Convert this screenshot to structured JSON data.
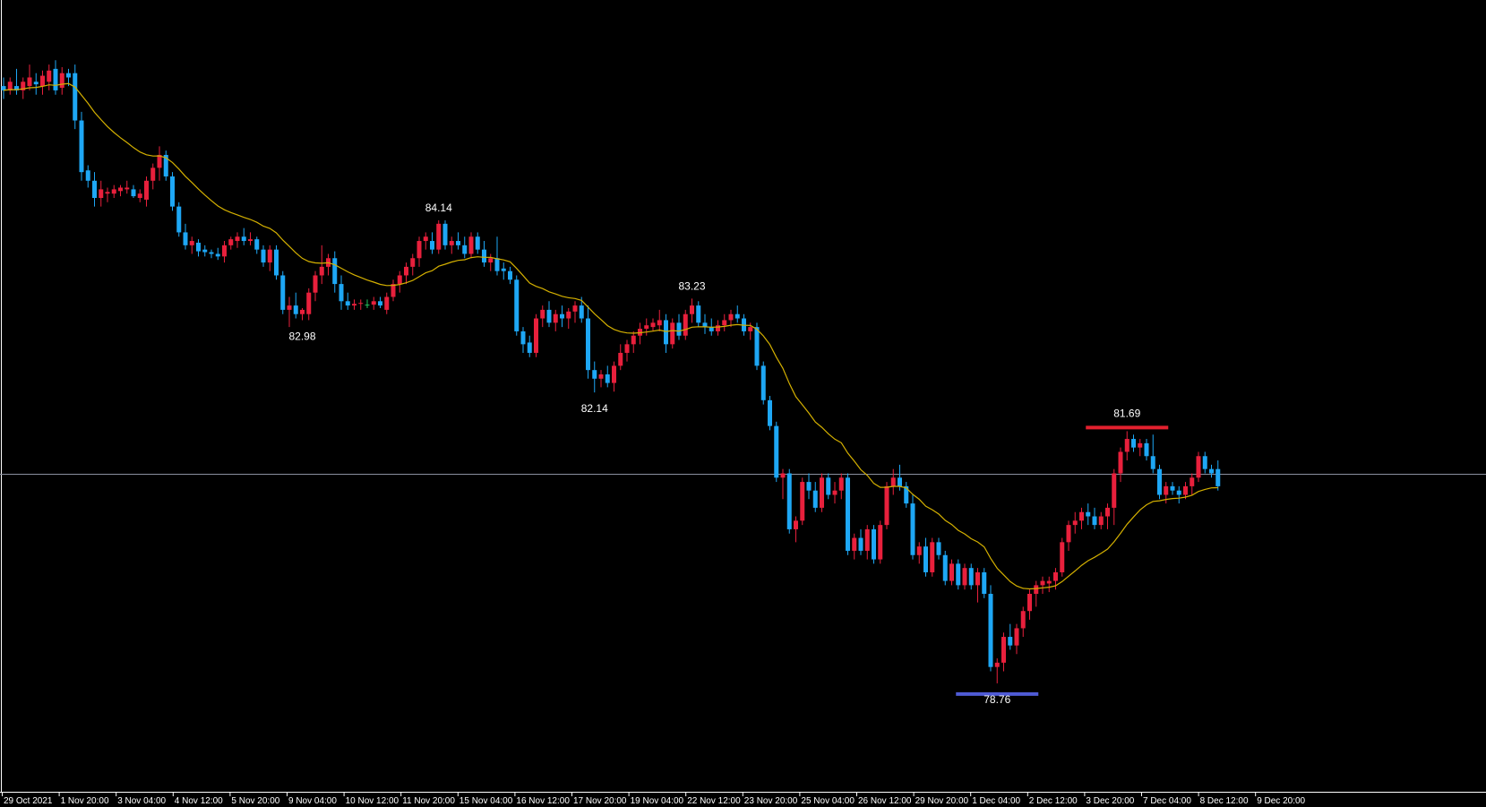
{
  "chart_data": {
    "type": "candlestick",
    "colors": {
      "background": "#000000",
      "bull": "#e8203c",
      "bear": "#1ea7f5",
      "doji": "#22c55e",
      "moving_average": "#d4b000",
      "crosshair": "#8a8f9e",
      "support_line": "#4f5bd5",
      "resistance_line": "#e3202e",
      "axis": "#ffffff"
    },
    "y_range": [
      77.5,
      86.7
    ],
    "current_level": 81.19,
    "x_tick_labels": [
      "29 Oct 2021",
      "1 Nov 20:00",
      "3 Nov 04:00",
      "4 Nov 12:00",
      "5 Nov 20:00",
      "9 Nov 04:00",
      "10 Nov 12:00",
      "11 Nov 20:00",
      "15 Nov 04:00",
      "16 Nov 12:00",
      "17 Nov 20:00",
      "19 Nov 04:00",
      "22 Nov 12:00",
      "23 Nov 20:00",
      "25 Nov 04:00",
      "26 Nov 12:00",
      "29 Nov 20:00",
      "1 Dec 04:00",
      "2 Dec 12:00",
      "3 Dec 20:00",
      "7 Dec 04:00",
      "8 Dec 12:00",
      "9 Dec 20:00"
    ],
    "annotations": [
      {
        "label": "84.14",
        "value": 84.14,
        "type": "high"
      },
      {
        "label": "82.98",
        "value": 82.98,
        "type": "low"
      },
      {
        "label": "83.23",
        "value": 83.23,
        "type": "high"
      },
      {
        "label": "82.14",
        "value": 82.14,
        "type": "low"
      },
      {
        "label": "81.69",
        "value": 81.69,
        "type": "resistance"
      },
      {
        "label": "78.76",
        "value": 78.76,
        "type": "support"
      }
    ],
    "candles": [
      {
        "o": 85.7,
        "h": 85.8,
        "l": 85.55,
        "c": 85.65
      },
      {
        "o": 85.65,
        "h": 85.8,
        "l": 85.6,
        "c": 85.75
      },
      {
        "o": 85.7,
        "h": 85.9,
        "l": 85.6,
        "c": 85.65
      },
      {
        "o": 85.65,
        "h": 85.8,
        "l": 85.55,
        "c": 85.75
      },
      {
        "o": 85.7,
        "h": 85.95,
        "l": 85.65,
        "c": 85.8
      },
      {
        "o": 85.75,
        "h": 85.85,
        "l": 85.6,
        "c": 85.72
      },
      {
        "o": 85.7,
        "h": 85.88,
        "l": 85.6,
        "c": 85.82
      },
      {
        "o": 85.75,
        "h": 85.95,
        "l": 85.65,
        "c": 85.88
      },
      {
        "o": 85.9,
        "h": 86.0,
        "l": 85.6,
        "c": 85.65
      },
      {
        "o": 85.68,
        "h": 85.92,
        "l": 85.6,
        "c": 85.85
      },
      {
        "o": 85.85,
        "h": 85.9,
        "l": 85.7,
        "c": 85.8
      },
      {
        "o": 85.85,
        "h": 85.95,
        "l": 85.2,
        "c": 85.3
      },
      {
        "o": 85.3,
        "h": 85.4,
        "l": 84.6,
        "c": 84.7
      },
      {
        "o": 84.72,
        "h": 84.78,
        "l": 84.52,
        "c": 84.6
      },
      {
        "o": 84.6,
        "h": 84.7,
        "l": 84.3,
        "c": 84.4
      },
      {
        "o": 84.4,
        "h": 84.6,
        "l": 84.3,
        "c": 84.5
      },
      {
        "o": 84.45,
        "h": 84.52,
        "l": 84.35,
        "c": 84.47
      },
      {
        "o": 84.45,
        "h": 84.55,
        "l": 84.4,
        "c": 84.5
      },
      {
        "o": 84.48,
        "h": 84.55,
        "l": 84.42,
        "c": 84.52
      },
      {
        "o": 84.5,
        "h": 84.6,
        "l": 84.45,
        "c": 84.52
      },
      {
        "o": 84.5,
        "h": 84.55,
        "l": 84.4,
        "c": 84.42
      },
      {
        "o": 84.4,
        "h": 84.5,
        "l": 84.35,
        "c": 84.45
      },
      {
        "o": 84.38,
        "h": 84.65,
        "l": 84.3,
        "c": 84.6
      },
      {
        "o": 84.6,
        "h": 84.8,
        "l": 84.5,
        "c": 84.75
      },
      {
        "o": 84.75,
        "h": 85.0,
        "l": 84.6,
        "c": 84.9
      },
      {
        "o": 84.9,
        "h": 84.95,
        "l": 84.6,
        "c": 84.65
      },
      {
        "o": 84.65,
        "h": 84.7,
        "l": 84.25,
        "c": 84.3
      },
      {
        "o": 84.3,
        "h": 84.35,
        "l": 83.95,
        "c": 84.0
      },
      {
        "o": 84.0,
        "h": 84.1,
        "l": 83.8,
        "c": 83.85
      },
      {
        "o": 83.85,
        "h": 83.95,
        "l": 83.75,
        "c": 83.9
      },
      {
        "o": 83.88,
        "h": 83.92,
        "l": 83.72,
        "c": 83.78
      },
      {
        "o": 83.8,
        "h": 83.85,
        "l": 83.72,
        "c": 83.77
      },
      {
        "o": 83.77,
        "h": 83.8,
        "l": 83.7,
        "c": 83.75
      },
      {
        "o": 83.75,
        "h": 83.82,
        "l": 83.68,
        "c": 83.72
      },
      {
        "o": 83.72,
        "h": 83.9,
        "l": 83.65,
        "c": 83.85
      },
      {
        "o": 83.85,
        "h": 83.95,
        "l": 83.8,
        "c": 83.92
      },
      {
        "o": 83.9,
        "h": 84.0,
        "l": 83.82,
        "c": 83.95
      },
      {
        "o": 83.95,
        "h": 84.05,
        "l": 83.85,
        "c": 83.9
      },
      {
        "o": 83.9,
        "h": 84.0,
        "l": 83.85,
        "c": 83.92
      },
      {
        "o": 83.92,
        "h": 83.95,
        "l": 83.75,
        "c": 83.8
      },
      {
        "o": 83.8,
        "h": 83.85,
        "l": 83.6,
        "c": 83.65
      },
      {
        "o": 83.65,
        "h": 83.85,
        "l": 83.55,
        "c": 83.8
      },
      {
        "o": 83.8,
        "h": 83.85,
        "l": 83.45,
        "c": 83.5
      },
      {
        "o": 83.5,
        "h": 83.55,
        "l": 83.05,
        "c": 83.1
      },
      {
        "o": 83.1,
        "h": 83.25,
        "l": 82.9,
        "c": 83.15
      },
      {
        "o": 83.15,
        "h": 83.3,
        "l": 83.0,
        "c": 83.05
      },
      {
        "o": 83.05,
        "h": 83.12,
        "l": 82.98,
        "c": 83.1
      },
      {
        "o": 83.05,
        "h": 83.35,
        "l": 82.98,
        "c": 83.3
      },
      {
        "o": 83.3,
        "h": 83.55,
        "l": 83.2,
        "c": 83.5
      },
      {
        "o": 83.5,
        "h": 83.85,
        "l": 83.4,
        "c": 83.6
      },
      {
        "o": 83.6,
        "h": 83.75,
        "l": 83.5,
        "c": 83.7
      },
      {
        "o": 83.7,
        "h": 83.78,
        "l": 83.3,
        "c": 83.4
      },
      {
        "o": 83.4,
        "h": 83.5,
        "l": 83.1,
        "c": 83.2
      },
      {
        "o": 83.2,
        "h": 83.3,
        "l": 83.1,
        "c": 83.15
      },
      {
        "o": 83.15,
        "h": 83.22,
        "l": 83.1,
        "c": 83.17
      },
      {
        "o": 83.17,
        "h": 83.22,
        "l": 83.1,
        "c": 83.18
      },
      {
        "o": 83.16,
        "h": 83.22,
        "l": 83.12,
        "c": 83.16
      },
      {
        "o": 83.16,
        "h": 83.25,
        "l": 83.1,
        "c": 83.2
      },
      {
        "o": 83.2,
        "h": 83.25,
        "l": 83.12,
        "c": 83.15
      },
      {
        "o": 83.1,
        "h": 83.3,
        "l": 83.05,
        "c": 83.25
      },
      {
        "o": 83.25,
        "h": 83.45,
        "l": 83.2,
        "c": 83.4
      },
      {
        "o": 83.4,
        "h": 83.55,
        "l": 83.3,
        "c": 83.5
      },
      {
        "o": 83.5,
        "h": 83.65,
        "l": 83.4,
        "c": 83.6
      },
      {
        "o": 83.6,
        "h": 83.75,
        "l": 83.5,
        "c": 83.7
      },
      {
        "o": 83.7,
        "h": 83.95,
        "l": 83.6,
        "c": 83.9
      },
      {
        "o": 83.9,
        "h": 84.0,
        "l": 83.8,
        "c": 83.95
      },
      {
        "o": 83.9,
        "h": 84.0,
        "l": 83.75,
        "c": 83.8
      },
      {
        "o": 83.8,
        "h": 84.14,
        "l": 83.75,
        "c": 84.1
      },
      {
        "o": 84.1,
        "h": 84.14,
        "l": 83.8,
        "c": 83.85
      },
      {
        "o": 83.85,
        "h": 83.95,
        "l": 83.75,
        "c": 83.9
      },
      {
        "o": 83.9,
        "h": 84.0,
        "l": 83.8,
        "c": 83.85
      },
      {
        "o": 83.85,
        "h": 83.95,
        "l": 83.7,
        "c": 83.75
      },
      {
        "o": 83.75,
        "h": 84.0,
        "l": 83.7,
        "c": 83.95
      },
      {
        "o": 83.95,
        "h": 84.0,
        "l": 83.75,
        "c": 83.8
      },
      {
        "o": 83.8,
        "h": 83.9,
        "l": 83.6,
        "c": 83.65
      },
      {
        "o": 83.65,
        "h": 83.75,
        "l": 83.55,
        "c": 83.7
      },
      {
        "o": 83.7,
        "h": 83.95,
        "l": 83.5,
        "c": 83.55
      },
      {
        "o": 83.58,
        "h": 83.65,
        "l": 83.45,
        "c": 83.55
      },
      {
        "o": 83.55,
        "h": 83.6,
        "l": 83.4,
        "c": 83.45
      },
      {
        "o": 83.45,
        "h": 83.5,
        "l": 82.8,
        "c": 82.85
      },
      {
        "o": 82.85,
        "h": 82.9,
        "l": 82.6,
        "c": 82.7
      },
      {
        "o": 82.72,
        "h": 82.8,
        "l": 82.55,
        "c": 82.6
      },
      {
        "o": 82.6,
        "h": 83.05,
        "l": 82.55,
        "c": 83.0
      },
      {
        "o": 83.0,
        "h": 83.15,
        "l": 82.9,
        "c": 83.1
      },
      {
        "o": 83.1,
        "h": 83.2,
        "l": 82.9,
        "c": 82.95
      },
      {
        "o": 82.95,
        "h": 83.1,
        "l": 82.85,
        "c": 83.05
      },
      {
        "o": 83.05,
        "h": 83.15,
        "l": 82.9,
        "c": 83.0
      },
      {
        "o": 83.0,
        "h": 83.12,
        "l": 82.88,
        "c": 83.08
      },
      {
        "o": 83.08,
        "h": 83.2,
        "l": 82.95,
        "c": 83.15
      },
      {
        "o": 83.15,
        "h": 83.25,
        "l": 82.95,
        "c": 83.0
      },
      {
        "o": 83.0,
        "h": 83.15,
        "l": 82.3,
        "c": 82.4
      },
      {
        "o": 82.4,
        "h": 82.5,
        "l": 82.14,
        "c": 82.3
      },
      {
        "o": 82.3,
        "h": 82.4,
        "l": 82.2,
        "c": 82.35
      },
      {
        "o": 82.35,
        "h": 82.45,
        "l": 82.2,
        "c": 82.25
      },
      {
        "o": 82.25,
        "h": 82.5,
        "l": 82.15,
        "c": 82.45
      },
      {
        "o": 82.45,
        "h": 82.7,
        "l": 82.4,
        "c": 82.6
      },
      {
        "o": 82.6,
        "h": 82.75,
        "l": 82.5,
        "c": 82.7
      },
      {
        "o": 82.7,
        "h": 82.85,
        "l": 82.6,
        "c": 82.8
      },
      {
        "o": 82.8,
        "h": 82.95,
        "l": 82.7,
        "c": 82.88
      },
      {
        "o": 82.88,
        "h": 83.0,
        "l": 82.8,
        "c": 82.92
      },
      {
        "o": 82.9,
        "h": 83.0,
        "l": 82.85,
        "c": 82.95
      },
      {
        "o": 82.92,
        "h": 83.1,
        "l": 82.85,
        "c": 82.98
      },
      {
        "o": 82.98,
        "h": 83.05,
        "l": 82.6,
        "c": 82.7
      },
      {
        "o": 82.7,
        "h": 83.0,
        "l": 82.65,
        "c": 82.95
      },
      {
        "o": 82.95,
        "h": 83.05,
        "l": 82.75,
        "c": 82.8
      },
      {
        "o": 82.8,
        "h": 83.1,
        "l": 82.75,
        "c": 83.05
      },
      {
        "o": 83.05,
        "h": 83.23,
        "l": 82.95,
        "c": 83.15
      },
      {
        "o": 83.15,
        "h": 83.2,
        "l": 82.9,
        "c": 82.95
      },
      {
        "o": 82.95,
        "h": 83.05,
        "l": 82.82,
        "c": 82.9
      },
      {
        "o": 82.9,
        "h": 83.0,
        "l": 82.8,
        "c": 82.85
      },
      {
        "o": 82.85,
        "h": 82.98,
        "l": 82.8,
        "c": 82.92
      },
      {
        "o": 82.92,
        "h": 83.05,
        "l": 82.85,
        "c": 82.98
      },
      {
        "o": 82.98,
        "h": 83.1,
        "l": 82.9,
        "c": 83.05
      },
      {
        "o": 83.05,
        "h": 83.15,
        "l": 82.95,
        "c": 83.0
      },
      {
        "o": 83.0,
        "h": 83.05,
        "l": 82.8,
        "c": 82.85
      },
      {
        "o": 82.85,
        "h": 82.95,
        "l": 82.75,
        "c": 82.9
      },
      {
        "o": 82.9,
        "h": 82.95,
        "l": 82.4,
        "c": 82.45
      },
      {
        "o": 82.45,
        "h": 82.5,
        "l": 82.0,
        "c": 82.05
      },
      {
        "o": 82.05,
        "h": 82.1,
        "l": 81.7,
        "c": 81.75
      },
      {
        "o": 81.75,
        "h": 81.8,
        "l": 81.1,
        "c": 81.15
      },
      {
        "o": 81.15,
        "h": 81.25,
        "l": 80.9,
        "c": 81.2
      },
      {
        "o": 81.2,
        "h": 81.25,
        "l": 80.5,
        "c": 80.55
      },
      {
        "o": 80.55,
        "h": 80.7,
        "l": 80.4,
        "c": 80.65
      },
      {
        "o": 80.65,
        "h": 81.15,
        "l": 80.6,
        "c": 81.1
      },
      {
        "o": 81.1,
        "h": 81.2,
        "l": 80.9,
        "c": 81.0
      },
      {
        "o": 81.0,
        "h": 81.1,
        "l": 80.75,
        "c": 80.8
      },
      {
        "o": 80.8,
        "h": 81.2,
        "l": 80.75,
        "c": 81.15
      },
      {
        "o": 81.15,
        "h": 81.2,
        "l": 80.9,
        "c": 80.95
      },
      {
        "o": 80.95,
        "h": 81.1,
        "l": 80.85,
        "c": 81.0
      },
      {
        "o": 81.0,
        "h": 81.2,
        "l": 80.9,
        "c": 81.15
      },
      {
        "o": 81.15,
        "h": 81.2,
        "l": 80.25,
        "c": 80.3
      },
      {
        "o": 80.3,
        "h": 80.5,
        "l": 80.2,
        "c": 80.45
      },
      {
        "o": 80.45,
        "h": 80.55,
        "l": 80.25,
        "c": 80.3
      },
      {
        "o": 80.3,
        "h": 80.6,
        "l": 80.2,
        "c": 80.55
      },
      {
        "o": 80.55,
        "h": 80.6,
        "l": 80.15,
        "c": 80.2
      },
      {
        "o": 80.2,
        "h": 80.65,
        "l": 80.15,
        "c": 80.6
      },
      {
        "o": 80.6,
        "h": 81.1,
        "l": 80.55,
        "c": 81.05
      },
      {
        "o": 81.05,
        "h": 81.25,
        "l": 80.95,
        "c": 81.15
      },
      {
        "o": 81.15,
        "h": 81.3,
        "l": 81.0,
        "c": 81.05
      },
      {
        "o": 81.05,
        "h": 81.1,
        "l": 80.8,
        "c": 80.85
      },
      {
        "o": 80.85,
        "h": 80.95,
        "l": 80.2,
        "c": 80.25
      },
      {
        "o": 80.25,
        "h": 80.4,
        "l": 80.15,
        "c": 80.35
      },
      {
        "o": 80.35,
        "h": 80.45,
        "l": 80.0,
        "c": 80.05
      },
      {
        "o": 80.05,
        "h": 80.45,
        "l": 80.0,
        "c": 80.4
      },
      {
        "o": 80.4,
        "h": 80.45,
        "l": 80.2,
        "c": 80.25
      },
      {
        "o": 80.25,
        "h": 80.3,
        "l": 79.9,
        "c": 79.95
      },
      {
        "o": 79.95,
        "h": 80.2,
        "l": 79.9,
        "c": 80.15
      },
      {
        "o": 80.15,
        "h": 80.2,
        "l": 79.85,
        "c": 79.9
      },
      {
        "o": 79.9,
        "h": 80.15,
        "l": 79.85,
        "c": 80.1
      },
      {
        "o": 80.1,
        "h": 80.15,
        "l": 79.85,
        "c": 79.9
      },
      {
        "o": 79.9,
        "h": 80.1,
        "l": 79.7,
        "c": 80.05
      },
      {
        "o": 80.05,
        "h": 80.1,
        "l": 79.75,
        "c": 79.8
      },
      {
        "o": 79.8,
        "h": 79.9,
        "l": 78.9,
        "c": 78.95
      },
      {
        "o": 78.95,
        "h": 79.05,
        "l": 78.76,
        "c": 79.0
      },
      {
        "o": 79.0,
        "h": 79.35,
        "l": 78.9,
        "c": 79.3
      },
      {
        "o": 79.3,
        "h": 79.45,
        "l": 79.15,
        "c": 79.2
      },
      {
        "o": 79.2,
        "h": 79.45,
        "l": 79.1,
        "c": 79.4
      },
      {
        "o": 79.4,
        "h": 79.65,
        "l": 79.3,
        "c": 79.6
      },
      {
        "o": 79.6,
        "h": 79.85,
        "l": 79.5,
        "c": 79.8
      },
      {
        "o": 79.8,
        "h": 79.95,
        "l": 79.65,
        "c": 79.9
      },
      {
        "o": 79.9,
        "h": 80.0,
        "l": 79.8,
        "c": 79.95
      },
      {
        "o": 79.92,
        "h": 80.0,
        "l": 79.82,
        "c": 79.95
      },
      {
        "o": 79.95,
        "h": 80.1,
        "l": 79.85,
        "c": 80.05
      },
      {
        "o": 80.05,
        "h": 80.45,
        "l": 80.0,
        "c": 80.4
      },
      {
        "o": 80.4,
        "h": 80.65,
        "l": 80.3,
        "c": 80.6
      },
      {
        "o": 80.6,
        "h": 80.75,
        "l": 80.5,
        "c": 80.65
      },
      {
        "o": 80.65,
        "h": 80.8,
        "l": 80.55,
        "c": 80.75
      },
      {
        "o": 80.75,
        "h": 80.85,
        "l": 80.6,
        "c": 80.7
      },
      {
        "o": 80.7,
        "h": 80.8,
        "l": 80.55,
        "c": 80.6
      },
      {
        "o": 80.6,
        "h": 80.75,
        "l": 80.55,
        "c": 80.7
      },
      {
        "o": 80.7,
        "h": 80.85,
        "l": 80.55,
        "c": 80.8
      },
      {
        "o": 80.8,
        "h": 81.25,
        "l": 80.6,
        "c": 81.2
      },
      {
        "o": 81.2,
        "h": 81.5,
        "l": 81.1,
        "c": 81.45
      },
      {
        "o": 81.45,
        "h": 81.69,
        "l": 81.35,
        "c": 81.6
      },
      {
        "o": 81.6,
        "h": 81.65,
        "l": 81.45,
        "c": 81.5
      },
      {
        "o": 81.5,
        "h": 81.6,
        "l": 81.4,
        "c": 81.55
      },
      {
        "o": 81.55,
        "h": 81.6,
        "l": 81.35,
        "c": 81.4
      },
      {
        "o": 81.4,
        "h": 81.65,
        "l": 81.2,
        "c": 81.25
      },
      {
        "o": 81.25,
        "h": 81.3,
        "l": 80.9,
        "c": 80.95
      },
      {
        "o": 80.95,
        "h": 81.1,
        "l": 80.85,
        "c": 81.05
      },
      {
        "o": 81.05,
        "h": 81.1,
        "l": 80.95,
        "c": 81.0
      },
      {
        "o": 81.0,
        "h": 81.05,
        "l": 80.85,
        "c": 80.95
      },
      {
        "o": 80.95,
        "h": 81.1,
        "l": 80.9,
        "c": 81.05
      },
      {
        "o": 81.05,
        "h": 81.2,
        "l": 80.95,
        "c": 81.15
      },
      {
        "o": 81.15,
        "h": 81.45,
        "l": 81.1,
        "c": 81.4
      },
      {
        "o": 81.4,
        "h": 81.45,
        "l": 81.2,
        "c": 81.25
      },
      {
        "o": 81.25,
        "h": 81.3,
        "l": 81.15,
        "c": 81.2
      },
      {
        "o": 81.25,
        "h": 81.35,
        "l": 81.0,
        "c": 81.05
      }
    ]
  }
}
